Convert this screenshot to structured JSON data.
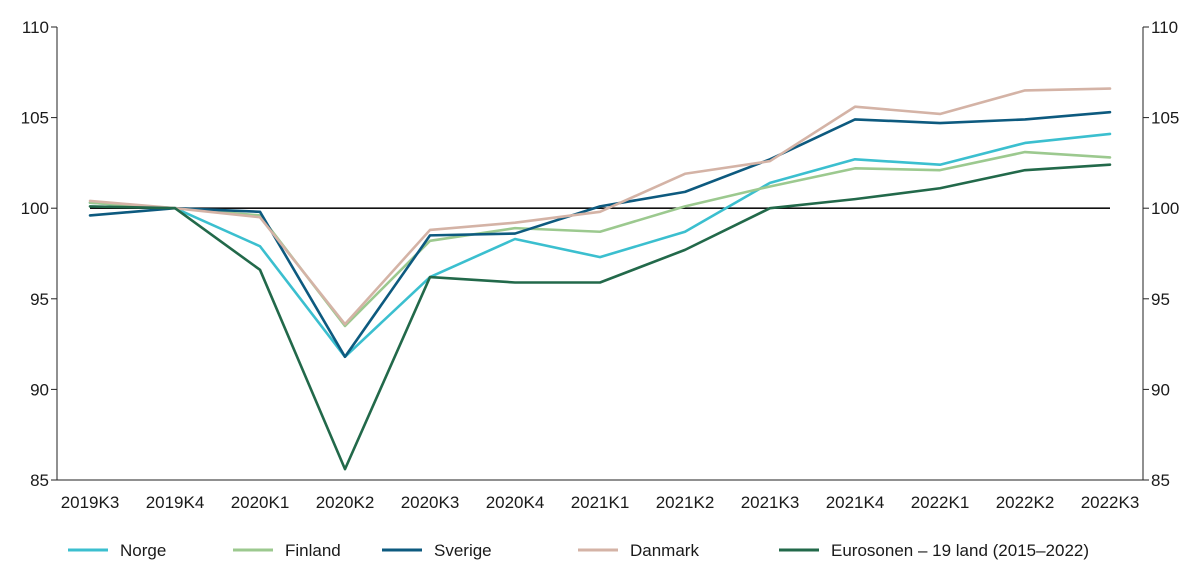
{
  "chart_data": {
    "type": "line",
    "title": "",
    "xlabel": "",
    "ylabel": "",
    "categories": [
      "2019K3",
      "2019K4",
      "2020K1",
      "2020K2",
      "2020K3",
      "2020K4",
      "2021K1",
      "2021K2",
      "2021K3",
      "2021K4",
      "2022K1",
      "2022K2",
      "2022K3"
    ],
    "ylim": [
      85,
      110
    ],
    "yticks": [
      85,
      90,
      95,
      100,
      105,
      110
    ],
    "reference_line": 100,
    "grid": false,
    "legend_position": "bottom",
    "series": [
      {
        "name": "Norge",
        "color": "#3bbfcf",
        "values": [
          100.3,
          100.0,
          97.9,
          91.8,
          96.2,
          98.3,
          97.3,
          98.7,
          101.4,
          102.7,
          102.4,
          103.6,
          104.1
        ]
      },
      {
        "name": "Finland",
        "color": "#9cc98f",
        "values": [
          100.3,
          100.0,
          99.6,
          93.5,
          98.2,
          98.9,
          98.7,
          100.1,
          101.2,
          102.2,
          102.1,
          103.1,
          102.8
        ]
      },
      {
        "name": "Sverige",
        "color": "#0d5a7f",
        "values": [
          99.6,
          100.0,
          99.8,
          91.8,
          98.5,
          98.6,
          100.1,
          100.9,
          102.7,
          104.9,
          104.7,
          104.9,
          105.3
        ]
      },
      {
        "name": "Danmark",
        "color": "#d4b3a6",
        "values": [
          100.4,
          100.0,
          99.5,
          93.6,
          98.8,
          99.2,
          99.8,
          101.9,
          102.6,
          105.6,
          105.2,
          106.5,
          106.6
        ]
      },
      {
        "name": "Eurosonen – 19 land  (2015–2022)",
        "color": "#22694a",
        "values": [
          100.1,
          100.0,
          96.6,
          85.6,
          96.2,
          95.9,
          95.9,
          97.7,
          100.0,
          100.5,
          101.1,
          102.1,
          102.4
        ]
      }
    ]
  }
}
